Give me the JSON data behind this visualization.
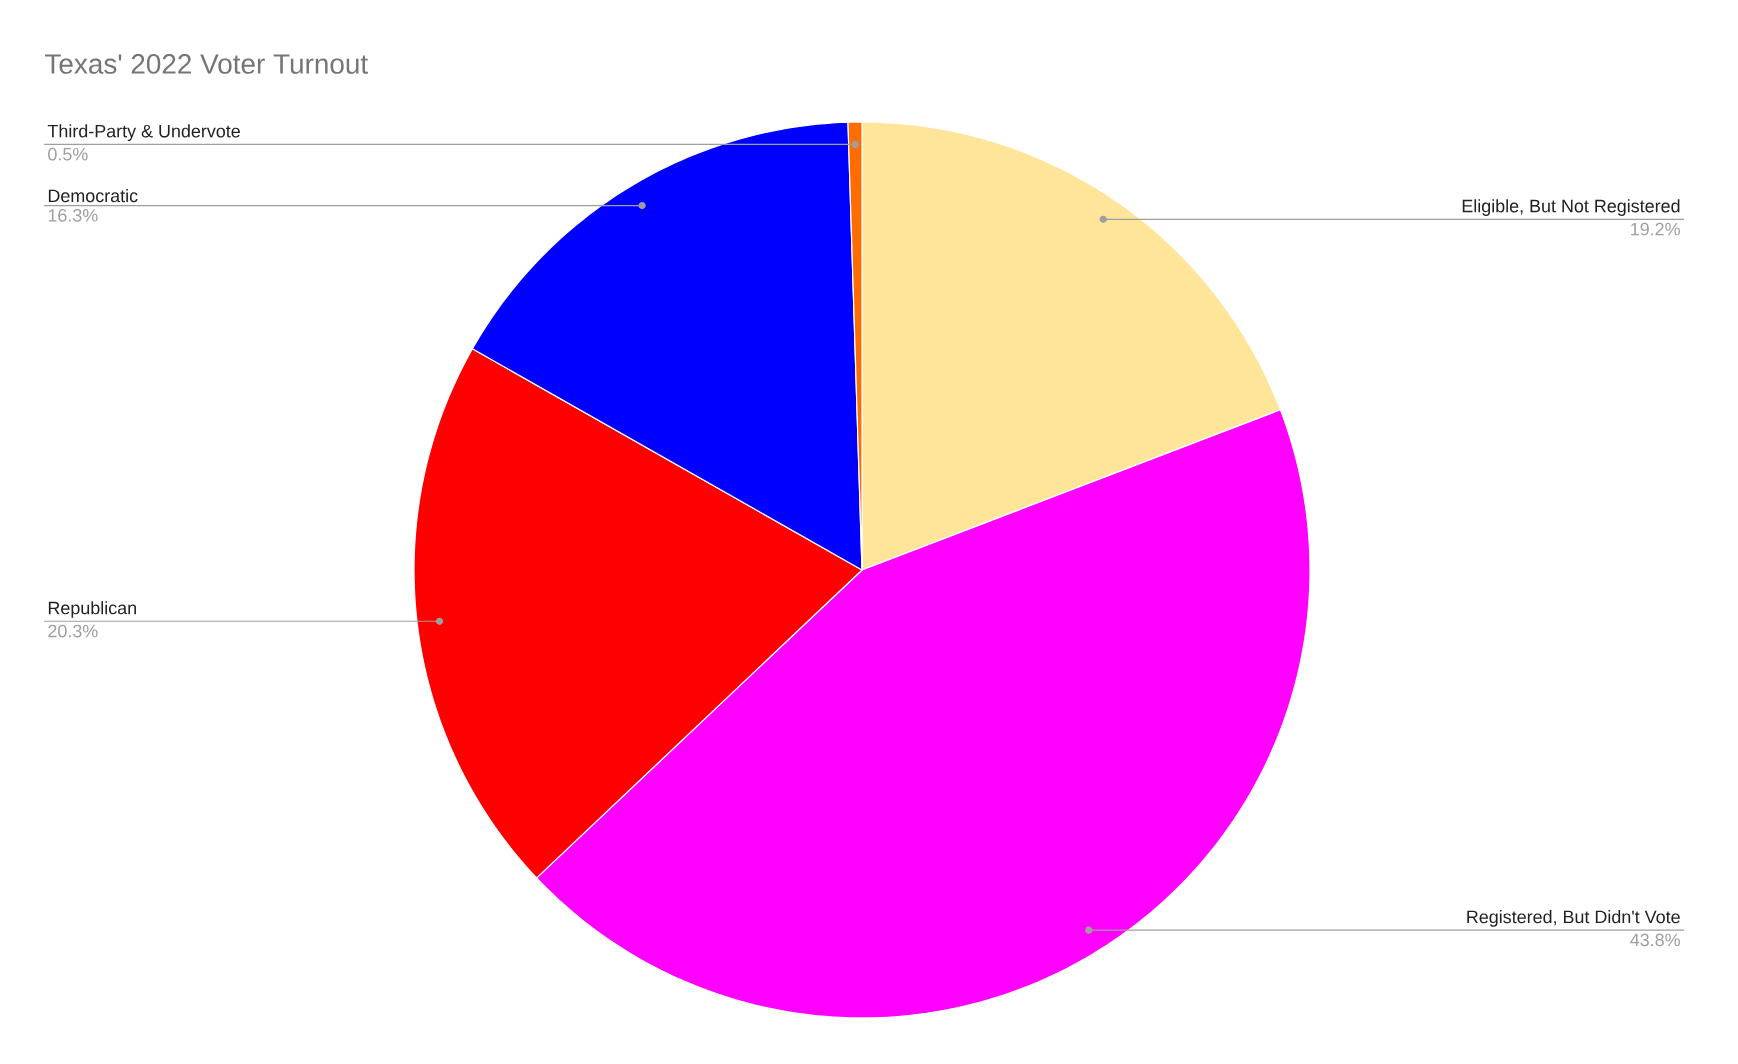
{
  "chart_data": {
    "type": "pie",
    "title": "Texas' 2022 Voter Turnout",
    "categories": [
      "Eligible, But Not Registered",
      "Registered, But Didn't Vote",
      "Republican",
      "Democratic",
      "Third-Party & Undervote"
    ],
    "values": [
      19.2,
      43.8,
      20.3,
      16.3,
      0.5
    ],
    "value_labels": [
      "19.2%",
      "43.8%",
      "20.3%",
      "16.3%",
      "0.5%"
    ],
    "colors": [
      "#ffe599",
      "#ff00ff",
      "#ff0000",
      "#0000ff",
      "#ff6d01"
    ]
  }
}
